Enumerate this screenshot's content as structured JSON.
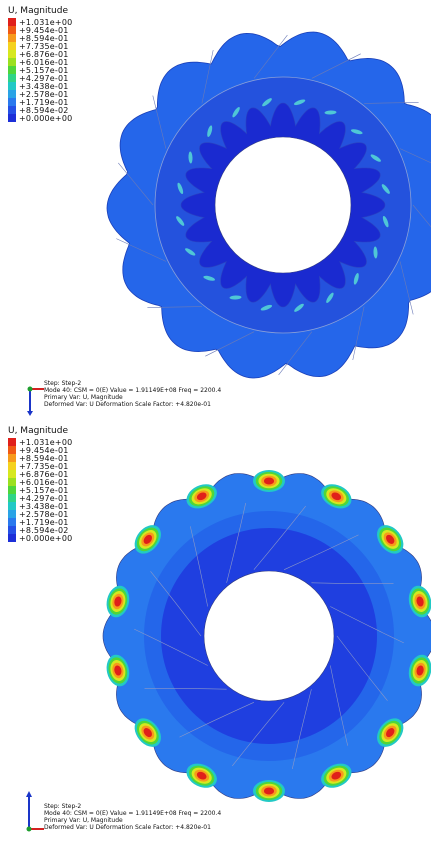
{
  "legend": {
    "title": "U, Magnitude",
    "labels": [
      "+1.031e+00",
      "+9.454e-01",
      "+8.594e-01",
      "+7.735e-01",
      "+6.876e-01",
      "+6.016e-01",
      "+5.157e-01",
      "+4.297e-01",
      "+3.438e-01",
      "+2.578e-01",
      "+1.719e-01",
      "+8.594e-02",
      "+0.000e+00"
    ],
    "colors": [
      "#e0201a",
      "#f05a14",
      "#f79a1b",
      "#f5d21e",
      "#d6e81f",
      "#9be01f",
      "#4fd63a",
      "#2fd487",
      "#22c9c6",
      "#2aa3e6",
      "#2a79ee",
      "#2450e6",
      "#1c2fd8"
    ]
  },
  "info": {
    "line1": "Step: Step-2",
    "line2": "Mode    40: CSM =    0(E) Value =  1.91149E+08 Freq =   2200.4",
    "line3": "Primary Var: U, Magnitude",
    "line4": "Deformed Var: U   Deformation Scale Factor: +4.820e-01"
  }
}
